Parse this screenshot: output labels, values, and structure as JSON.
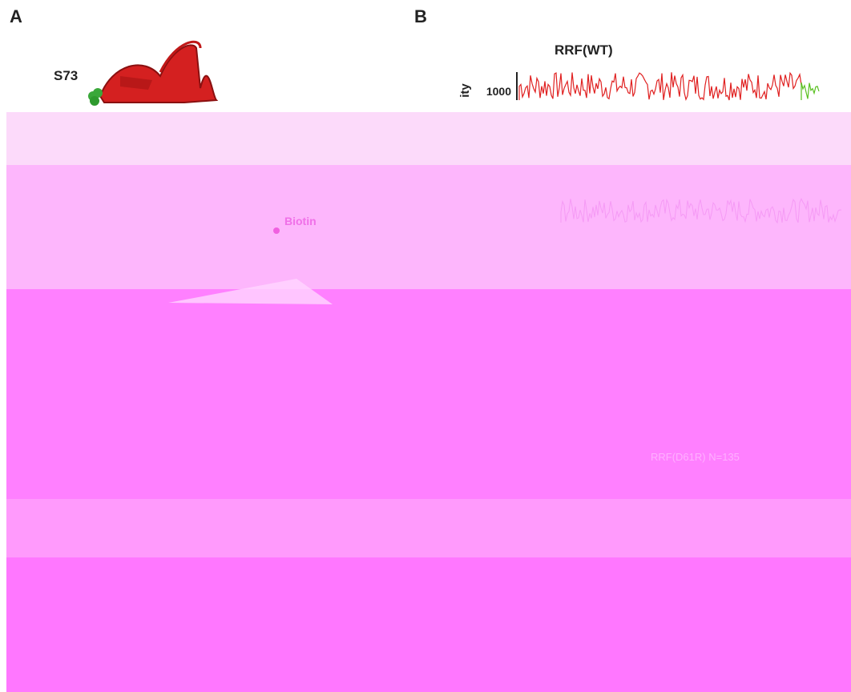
{
  "panels": {
    "a": {
      "label": "A",
      "residue": "S73",
      "tag": "Biotin"
    },
    "b": {
      "label": "B",
      "title": "RRF(WT)",
      "y_label": "ity",
      "tick": "1000",
      "overlay_text": "RRF(D61R) N=135"
    }
  }
}
